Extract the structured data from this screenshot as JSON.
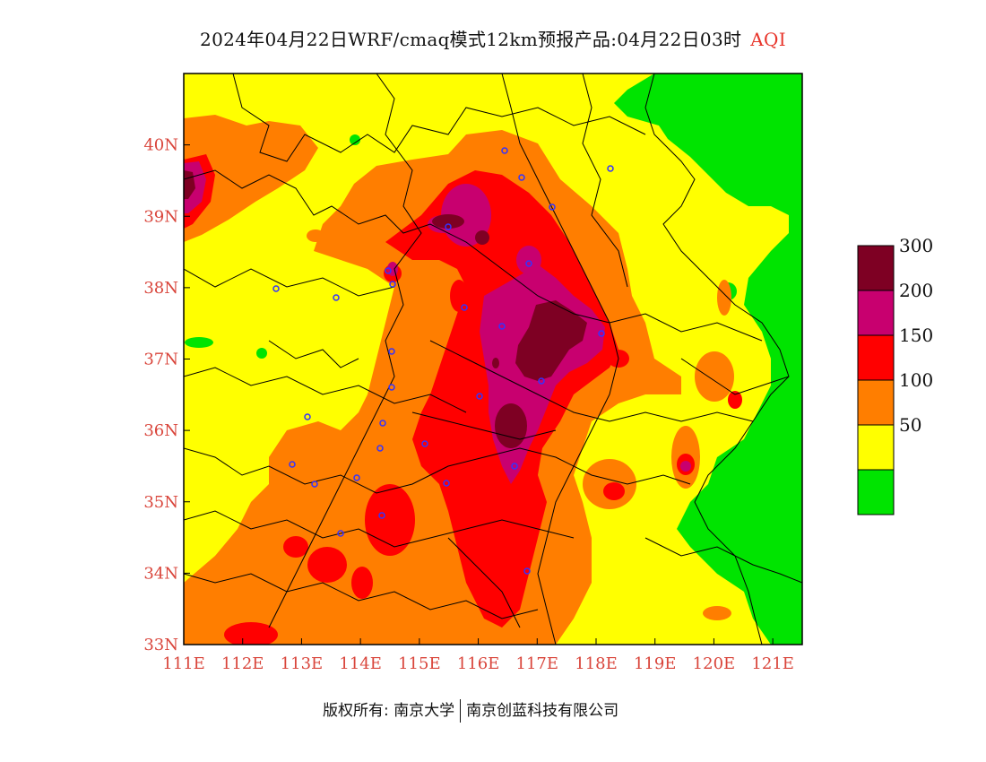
{
  "title": {
    "main": "2024年04月22日WRF/cmaq模式12km预报产品:04月22日03时",
    "variable": "AQI"
  },
  "map": {
    "lon_range": [
      111,
      121.5
    ],
    "lat_range": [
      33,
      41
    ],
    "x_ticks": [
      "111E",
      "112E",
      "113E",
      "114E",
      "115E",
      "116E",
      "117E",
      "118E",
      "119E",
      "120E",
      "121E"
    ],
    "y_ticks": [
      "33N",
      "34N",
      "35N",
      "36N",
      "37N",
      "38N",
      "39N",
      "40N"
    ]
  },
  "legend": {
    "levels": [
      {
        "label": "",
        "color": "#00e400"
      },
      {
        "label": "50",
        "color": "#ffff00"
      },
      {
        "label": "100",
        "color": "#ff7e00"
      },
      {
        "label": "150",
        "color": "#ff0000"
      },
      {
        "label": "200",
        "color": "#c8006f"
      },
      {
        "label": "300",
        "color": "#7e0023"
      }
    ]
  },
  "footer": {
    "left": "版权所有: 南京大学",
    "right": "南京创蓝科技有限公司"
  }
}
